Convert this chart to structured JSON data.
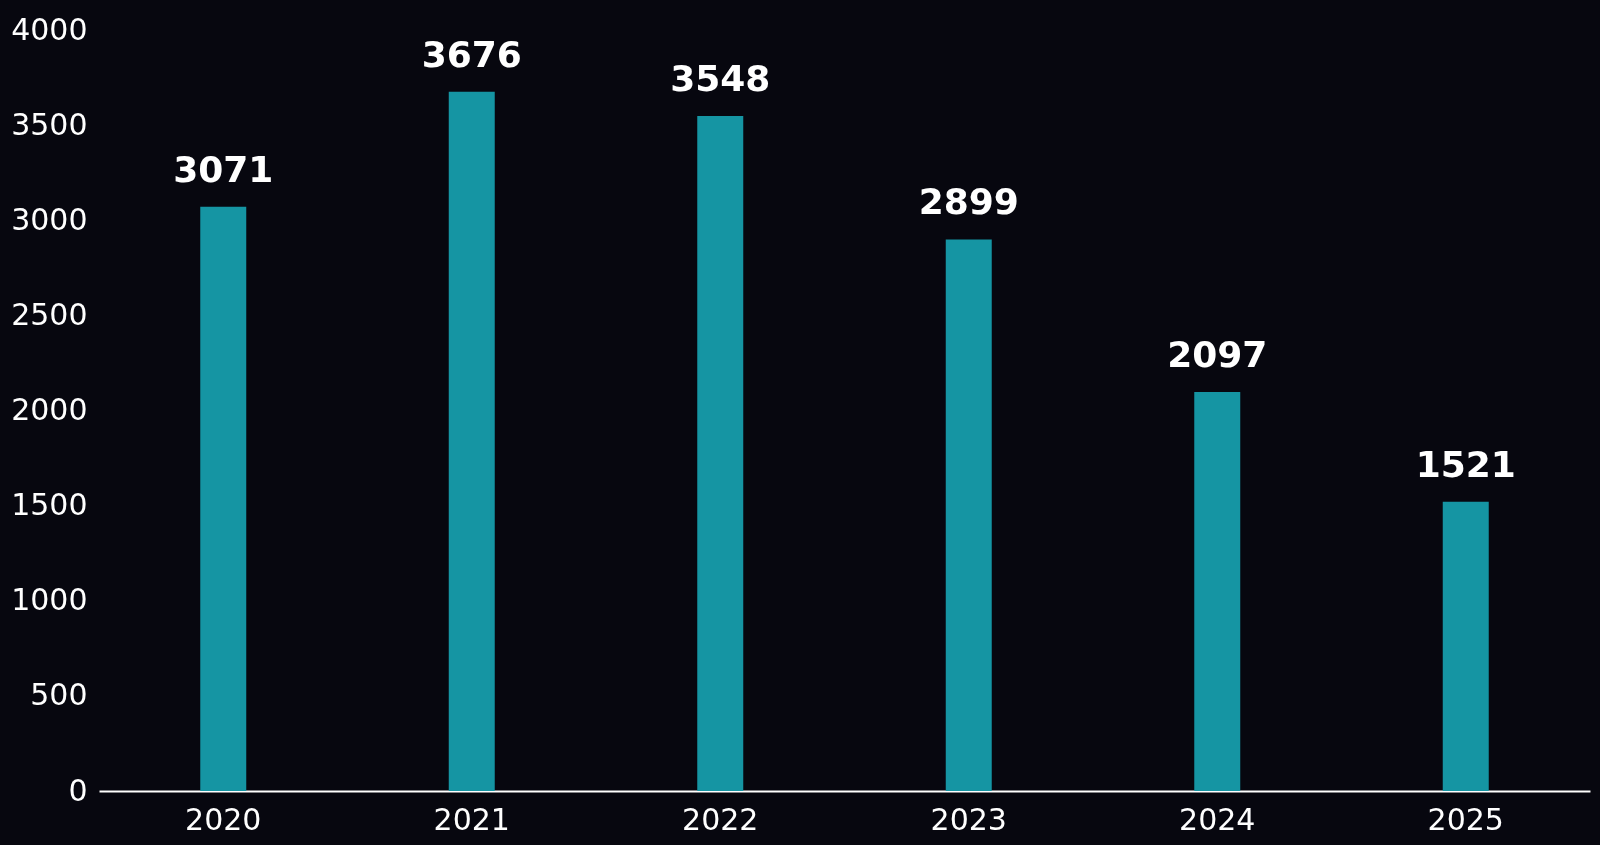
{
  "chart_data": {
    "type": "bar",
    "categories": [
      "2020",
      "2021",
      "2022",
      "2023",
      "2024",
      "2025"
    ],
    "values": [
      3071,
      3676,
      3548,
      2899,
      2097,
      1521
    ],
    "color": "#1595a3",
    "ylim": [
      0,
      4000
    ],
    "yticks": [
      0,
      500,
      1000,
      1500,
      2000,
      2500,
      3000,
      3500,
      4000
    ],
    "data_labels": true,
    "grid": false
  }
}
